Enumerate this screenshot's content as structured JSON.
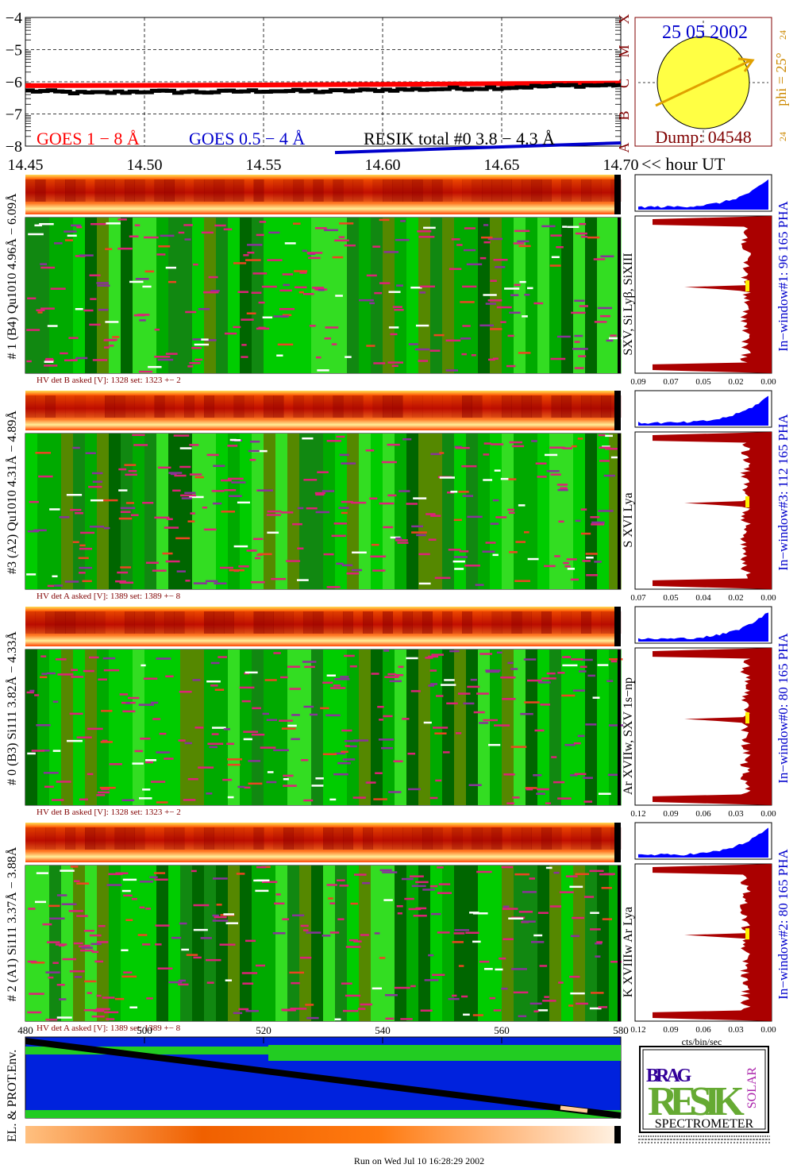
{
  "colors": {
    "goes_long": "#ff0000",
    "goes_short": "#0000cc",
    "resik_total": "#000000",
    "sun": "#ffff44",
    "arrow": "#e0a000",
    "title_blue": "#0000cc",
    "dark_red": "#800000",
    "orange": "#cc8800",
    "hist_red": "#aa0000",
    "hist_blue": "#0000ff",
    "heat_green": "#00cc00",
    "heat_magenta": "#cc2288"
  },
  "goes_panel": {
    "yticks": [
      "−4",
      "−5",
      "−6",
      "−7",
      "−8"
    ],
    "class_letters": [
      "X",
      "M",
      "C",
      "B",
      "A"
    ],
    "legend_long": "GOES 1 − 8 Å",
    "legend_short": "GOES 0.5 − 4 Å",
    "legend_resik": "RESIK total #0  3.8 − 4.3 Å",
    "xticks": [
      "14.45",
      "14.50",
      "14.55",
      "14.60",
      "14.65",
      "14.70"
    ],
    "xunit": "<< hour UT"
  },
  "sun_panel": {
    "date": "25 05 2002",
    "phi_label": "phi = 25°",
    "corner_top": "24",
    "corner_bottom": "24",
    "dump": "Dump: 04548"
  },
  "detectors": [
    {
      "left_label": "# 1 (B4) Qu1010 4.96Å − 6.09Å",
      "hv": "HV det B asked [V]:  1328 set:  1323  +−   2",
      "right_label": "In−window#1:   96 165  PHA",
      "line_label": "SXV, Si Lyβ, SiXIII",
      "hist_ticks": [
        "0.09",
        "0.07",
        "0.05",
        "0.02",
        "0.00"
      ]
    },
    {
      "left_label": "#3 (A2) Qu1010  4.31Å − 4.89Å",
      "hv": "HV det A asked [V]:  1389 set:  1389  +−   8",
      "right_label": "In−window#3:   112 165  PHA",
      "line_label": "S XVI Lya",
      "hist_ticks": [
        "0.07",
        "0.05",
        "0.04",
        "0.02",
        "0.00"
      ]
    },
    {
      "left_label": "# 0 (B3) Si111  3.82Å − 4.33Å",
      "hv": "HV det B asked [V]:  1328 set:  1323  +−   2",
      "right_label": "In−window#0:   80 165  PHA",
      "line_label": "Ar XVIIw, SXV 1s−np",
      "hist_ticks": [
        "0.12",
        "0.09",
        "0.06",
        "0.03",
        "0.00"
      ]
    },
    {
      "left_label": "# 2 (A1) Si111  3.37Å − 3.88Å",
      "hv": "HV det A asked [V]:  1389 set:  1389  +−   8",
      "right_label": "In−window#2:   80 165  PHA",
      "line_label": "K XVIIIw  Ar Lya",
      "hist_ticks": [
        "0.12",
        "0.09",
        "0.06",
        "0.03",
        "0.00"
      ]
    }
  ],
  "hist_unit": "cts/bin/sec",
  "env_panel": {
    "ylabel": "EL. & PROT.Env.",
    "xticks": [
      "480",
      "500",
      "520",
      "540",
      "560",
      "580"
    ]
  },
  "logo": {
    "bragg": "BRAG",
    "resik": "RESIK",
    "solar": "SOLAR",
    "spectrometer": "SPECTROMETER"
  },
  "footer": "Run on Wed Jul 10 16:28:29 2002",
  "chart_data": {
    "type": "line",
    "x_range": [
      14.45,
      14.7
    ],
    "ylim": [
      -8,
      -4
    ],
    "grid": true,
    "series": [
      {
        "name": "GOES 1 − 8 Å",
        "x": [
          14.45,
          14.5,
          14.55,
          14.6,
          14.65,
          14.7
        ],
        "values": [
          -6.12,
          -6.11,
          -6.1,
          -6.08,
          -6.06,
          -6.04
        ]
      },
      {
        "name": "GOES 0.5 − 4 Å",
        "x": [
          14.58,
          14.62,
          14.66,
          14.7
        ],
        "values": [
          -8.2,
          -8.1,
          -8.0,
          -7.9
        ]
      },
      {
        "name": "RESIK total #0  3.8 − 4.3 Å",
        "x": [
          14.45,
          14.475,
          14.5,
          14.525,
          14.55,
          14.575,
          14.6,
          14.625,
          14.65,
          14.675,
          14.7
        ],
        "values": [
          -6.28,
          -6.35,
          -6.3,
          -6.32,
          -6.28,
          -6.3,
          -6.25,
          -6.22,
          -6.18,
          -6.12,
          -6.1
        ]
      }
    ]
  }
}
